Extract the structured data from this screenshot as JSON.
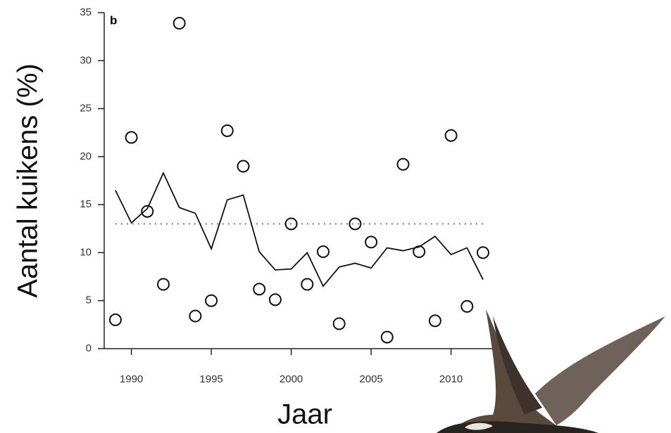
{
  "chart_data": {
    "type": "scatter",
    "panel_label": "b",
    "x_label": "Jaar",
    "y_label": "Aantal kuikens (%)",
    "x": [
      1989,
      1990,
      1991,
      1992,
      1993,
      1994,
      1995,
      1996,
      1997,
      1998,
      1999,
      2000,
      2001,
      2002,
      2003,
      2004,
      2005,
      2006,
      2007,
      2008,
      2009,
      2010,
      2011,
      2012
    ],
    "series": [
      {
        "style": "points",
        "color": "#111111",
        "values": [
          3,
          22,
          14.3,
          6.7,
          33.9,
          3.4,
          5,
          22.7,
          19,
          6.2,
          5.1,
          13,
          6.7,
          10.1,
          2.6,
          13,
          11.1,
          1.2,
          19.2,
          10.1,
          2.9,
          22.2,
          4.4,
          10
        ]
      },
      {
        "style": "line",
        "color": "#111111",
        "values": [
          16.5,
          13.1,
          14.6,
          18.3,
          14.7,
          14.1,
          10.4,
          15.5,
          16,
          10.1,
          8.2,
          8.3,
          10,
          6.5,
          8.5,
          8.9,
          8.4,
          10.5,
          10.2,
          10.6,
          11.7,
          9.8,
          10.5,
          7.2
        ]
      }
    ],
    "reference_line": 13,
    "xlim": [
      1988.3,
      2013.5
    ],
    "ylim": [
      0,
      35
    ],
    "xticks": [
      1990,
      1995,
      2000,
      2005,
      2010
    ],
    "yticks": [
      0,
      5,
      10,
      15,
      20,
      25,
      30,
      35
    ]
  }
}
